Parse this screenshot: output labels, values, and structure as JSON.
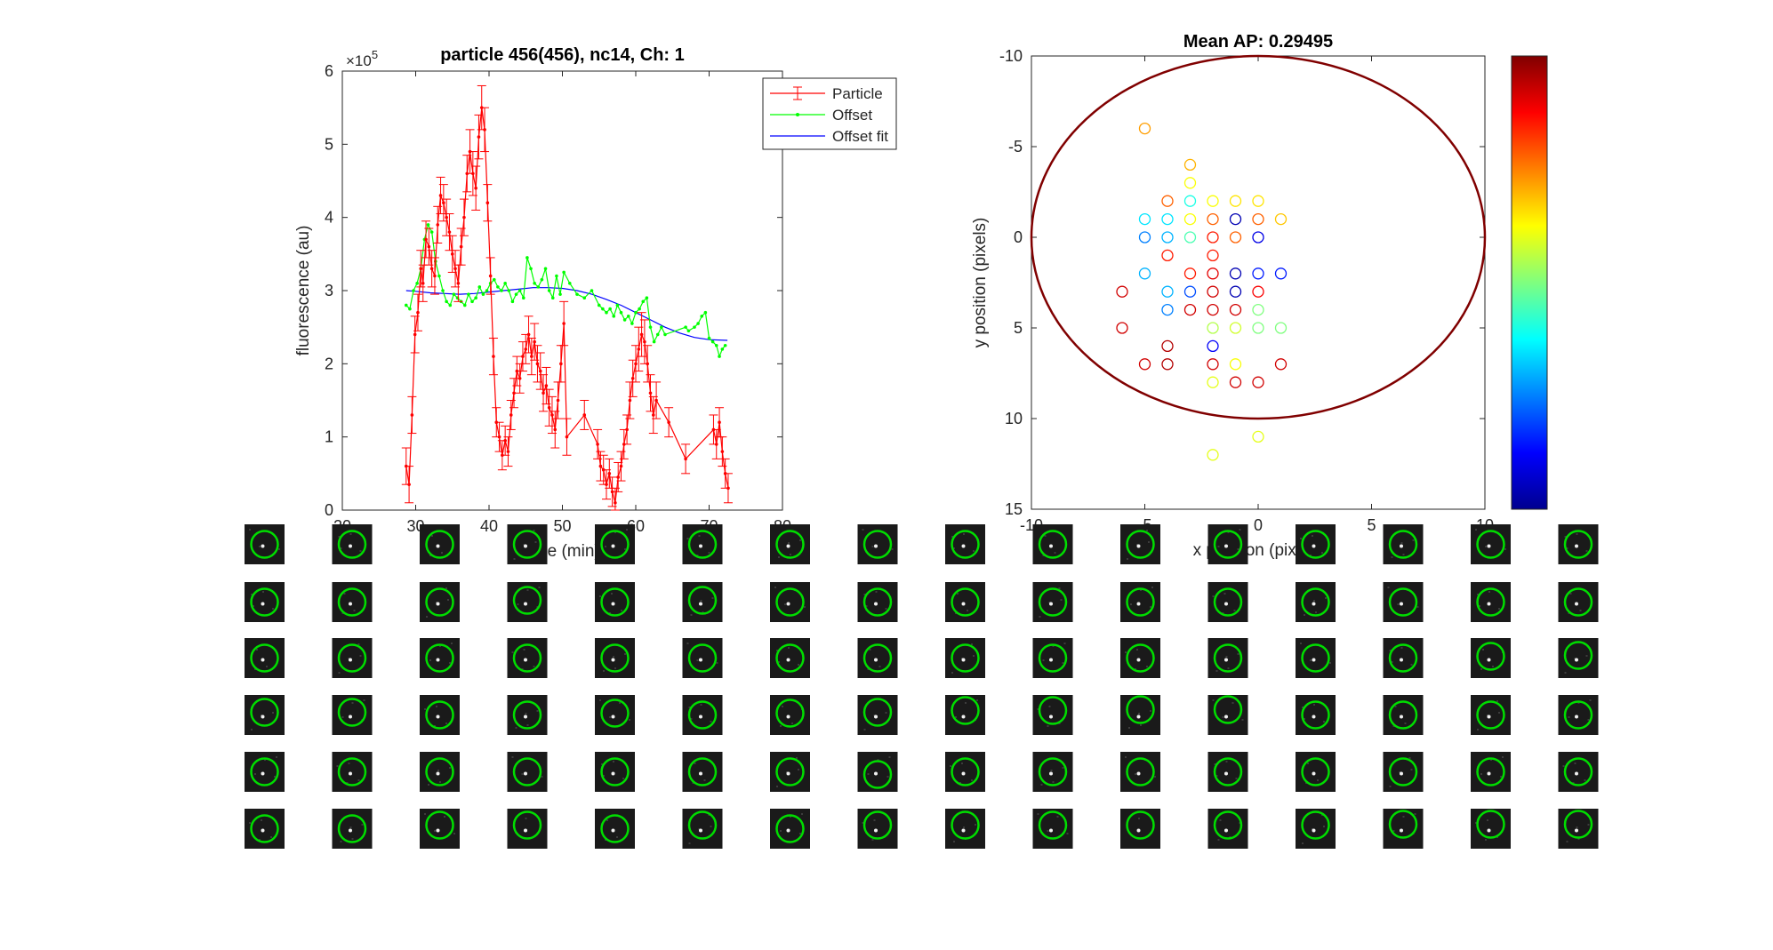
{
  "colors": {
    "particle": "#ff0000",
    "offset": "#00ff00",
    "offset_fit": "#0000ff",
    "ellipse": "#800000",
    "thumb_circle": "#00dd00",
    "thumb_bg": "#1a1a1a"
  },
  "chart_data": [
    {
      "type": "line",
      "title": "particle 456(456), nc14, Ch: 1",
      "xlabel": "time (min)",
      "ylabel": "fluorescence (au)",
      "y_exponent_label": "×10",
      "y_exponent_power": "5",
      "xlim": [
        20,
        80
      ],
      "ylim": [
        0,
        6
      ],
      "xticks": [
        "20",
        "30",
        "40",
        "50",
        "60",
        "70",
        "80"
      ],
      "yticks": [
        "0",
        "1",
        "2",
        "3",
        "4",
        "5",
        "6"
      ],
      "legend_position": "top-right",
      "legend": [
        "Particle",
        "Offset",
        "Offset fit"
      ],
      "series": [
        {
          "name": "Particle",
          "style": "line-with-errorbars",
          "x": [
            28.7,
            29.1,
            29.5,
            29.9,
            30.3,
            30.7,
            31.0,
            31.4,
            31.8,
            32.2,
            32.6,
            33.0,
            33.4,
            33.8,
            34.2,
            34.6,
            35.0,
            35.4,
            35.8,
            36.2,
            36.6,
            37.0,
            37.4,
            37.8,
            38.2,
            38.6,
            39.0,
            39.4,
            39.8,
            40.2,
            40.6,
            41.0,
            41.4,
            41.8,
            42.2,
            42.6,
            43.0,
            43.4,
            43.8,
            44.2,
            44.6,
            45.0,
            45.4,
            45.8,
            46.2,
            46.6,
            47.0,
            47.4,
            47.8,
            48.2,
            48.6,
            49.0,
            49.4,
            49.8,
            50.2,
            50.6,
            53.0,
            54.8,
            55.2,
            55.6,
            56.0,
            56.4,
            56.8,
            57.2,
            57.6,
            58.0,
            58.4,
            58.8,
            59.2,
            59.6,
            60.0,
            60.4,
            60.8,
            61.2,
            61.6,
            62.0,
            62.4,
            62.8,
            64.5,
            66.8,
            70.6,
            71.0,
            71.4,
            71.8,
            72.2,
            72.6
          ],
          "y": [
            0.6,
            0.35,
            1.3,
            2.4,
            2.7,
            3.3,
            3.1,
            3.7,
            3.6,
            3.3,
            3.2,
            3.9,
            4.3,
            4.2,
            4.0,
            3.8,
            3.5,
            3.3,
            3.1,
            3.6,
            4.0,
            4.6,
            4.9,
            4.6,
            4.4,
            5.1,
            5.5,
            5.2,
            4.2,
            3.2,
            2.1,
            1.2,
            1.0,
            0.75,
            0.95,
            0.8,
            1.3,
            1.6,
            1.9,
            1.8,
            2.1,
            2.2,
            2.4,
            2.1,
            2.3,
            2.0,
            1.9,
            1.6,
            1.7,
            1.4,
            1.3,
            1.1,
            1.5,
            2.0,
            2.55,
            1.0,
            1.3,
            0.9,
            0.6,
            0.55,
            0.35,
            0.5,
            0.25,
            0.1,
            0.45,
            0.6,
            0.9,
            1.1,
            1.5,
            1.8,
            2.0,
            2.2,
            2.4,
            2.3,
            2.0,
            1.6,
            1.3,
            1.5,
            1.2,
            0.7,
            1.1,
            0.9,
            1.2,
            0.8,
            0.5,
            0.3
          ],
          "err": [
            0.25,
            0.25,
            0.25,
            0.25,
            0.25,
            0.25,
            0.25,
            0.25,
            0.25,
            0.25,
            0.25,
            0.25,
            0.25,
            0.25,
            0.25,
            0.25,
            0.25,
            0.25,
            0.25,
            0.25,
            0.25,
            0.25,
            0.3,
            0.3,
            0.3,
            0.3,
            0.3,
            0.3,
            0.25,
            0.25,
            0.25,
            0.2,
            0.2,
            0.2,
            0.2,
            0.2,
            0.2,
            0.2,
            0.2,
            0.2,
            0.2,
            0.2,
            0.25,
            0.25,
            0.25,
            0.25,
            0.25,
            0.25,
            0.25,
            0.25,
            0.25,
            0.25,
            0.25,
            0.25,
            0.3,
            0.25,
            0.2,
            0.2,
            0.2,
            0.2,
            0.2,
            0.2,
            0.2,
            0.2,
            0.2,
            0.2,
            0.2,
            0.2,
            0.25,
            0.25,
            0.25,
            0.3,
            0.3,
            0.3,
            0.25,
            0.25,
            0.25,
            0.25,
            0.2,
            0.2,
            0.2,
            0.2,
            0.2,
            0.2,
            0.2,
            0.2
          ]
        },
        {
          "name": "Offset",
          "style": "line-with-dots",
          "x": [
            28.7,
            29.2,
            29.7,
            30.2,
            30.7,
            31.2,
            31.7,
            32.2,
            32.7,
            33.2,
            33.7,
            34.2,
            34.7,
            35.2,
            35.7,
            36.2,
            36.7,
            37.2,
            37.7,
            38.2,
            38.7,
            39.2,
            39.7,
            40.2,
            40.7,
            41.2,
            41.7,
            42.2,
            42.7,
            43.2,
            43.7,
            44.2,
            44.7,
            45.2,
            45.7,
            46.2,
            46.7,
            47.2,
            47.7,
            48.2,
            48.7,
            49.2,
            49.7,
            50.2,
            51.0,
            52.0,
            53.0,
            54.0,
            55.0,
            55.5,
            56.0,
            56.5,
            57.0,
            57.5,
            58.0,
            58.5,
            59.0,
            59.5,
            60.0,
            60.5,
            61.0,
            61.5,
            62.0,
            62.5,
            63.0,
            63.5,
            64.0,
            66.8,
            67.2,
            68.0,
            68.5,
            69.0,
            69.5,
            70.0,
            70.5,
            71.0,
            71.4,
            71.8,
            72.2
          ],
          "y": [
            2.8,
            2.75,
            3.0,
            3.1,
            3.3,
            3.7,
            3.9,
            3.8,
            3.4,
            3.2,
            3.0,
            2.85,
            2.8,
            2.95,
            2.9,
            2.85,
            2.8,
            2.95,
            2.85,
            2.9,
            3.05,
            2.95,
            3.0,
            3.1,
            3.15,
            3.05,
            3.0,
            3.1,
            3.0,
            2.85,
            2.95,
            3.0,
            2.9,
            3.45,
            3.3,
            3.1,
            3.05,
            3.15,
            3.3,
            3.0,
            2.9,
            3.2,
            2.95,
            3.25,
            3.1,
            2.95,
            2.9,
            3.0,
            2.8,
            2.75,
            2.7,
            2.75,
            2.65,
            2.8,
            2.7,
            2.6,
            2.65,
            2.55,
            2.7,
            2.75,
            2.85,
            2.9,
            2.5,
            2.3,
            2.4,
            2.5,
            2.4,
            2.5,
            2.45,
            2.5,
            2.55,
            2.65,
            2.7,
            2.35,
            2.3,
            2.25,
            2.1,
            2.2,
            2.25
          ]
        },
        {
          "name": "Offset fit",
          "style": "line",
          "x": [
            28.7,
            30,
            32,
            34,
            36,
            38,
            40,
            42,
            44,
            46,
            48,
            50,
            52,
            54,
            56,
            58,
            60,
            62,
            64,
            66,
            68,
            70,
            72.5
          ],
          "y": [
            3.0,
            2.99,
            2.97,
            2.96,
            2.95,
            2.96,
            2.98,
            3.0,
            3.02,
            3.04,
            3.04,
            3.03,
            3.0,
            2.95,
            2.88,
            2.8,
            2.7,
            2.6,
            2.5,
            2.42,
            2.36,
            2.33,
            2.32
          ]
        }
      ]
    },
    {
      "type": "scatter",
      "title": "Mean AP: 0.29495",
      "xlabel": "x position (pixels)",
      "ylabel": "y position (pixels)",
      "xlim": [
        -10,
        10
      ],
      "ylim": [
        -10,
        15
      ],
      "y_reversed": true,
      "xticks": [
        "-10",
        "-5",
        "0",
        "5",
        "10"
      ],
      "yticks": [
        "-10",
        "-5",
        "0",
        "5",
        "10",
        "15"
      ],
      "colormap": "jet",
      "colorbar": true,
      "ellipse": {
        "cx": 0,
        "cy": 0,
        "rx": 10,
        "ry": 10
      },
      "points": [
        {
          "x": -5,
          "y": -6,
          "c": 0.72
        },
        {
          "x": -3,
          "y": -4,
          "c": 0.7
        },
        {
          "x": -3,
          "y": -3,
          "c": 0.62
        },
        {
          "x": -4,
          "y": -2,
          "c": 0.78
        },
        {
          "x": -3,
          "y": -2,
          "c": 0.4
        },
        {
          "x": -2,
          "y": -2,
          "c": 0.62
        },
        {
          "x": -1,
          "y": -2,
          "c": 0.65
        },
        {
          "x": 0,
          "y": -2,
          "c": 0.65
        },
        {
          "x": -5,
          "y": -1,
          "c": 0.35
        },
        {
          "x": -4,
          "y": -1,
          "c": 0.35
        },
        {
          "x": -3,
          "y": -1,
          "c": 0.62
        },
        {
          "x": -2,
          "y": -1,
          "c": 0.78
        },
        {
          "x": -1,
          "y": -1,
          "c": 0.05
        },
        {
          "x": 0,
          "y": -1,
          "c": 0.78
        },
        {
          "x": 1,
          "y": -1,
          "c": 0.68
        },
        {
          "x": -5,
          "y": 0,
          "c": 0.25
        },
        {
          "x": -4,
          "y": 0,
          "c": 0.3
        },
        {
          "x": -3,
          "y": 0,
          "c": 0.45
        },
        {
          "x": -2,
          "y": 0,
          "c": 0.85
        },
        {
          "x": -1,
          "y": 0,
          "c": 0.78
        },
        {
          "x": 0,
          "y": 0,
          "c": 0.1
        },
        {
          "x": -4,
          "y": 1,
          "c": 0.85
        },
        {
          "x": -2,
          "y": 1,
          "c": 0.85
        },
        {
          "x": -5,
          "y": 2,
          "c": 0.3
        },
        {
          "x": -3,
          "y": 2,
          "c": 0.85
        },
        {
          "x": -2,
          "y": 2,
          "c": 0.9
        },
        {
          "x": -1,
          "y": 2,
          "c": 0.05
        },
        {
          "x": 0,
          "y": 2,
          "c": 0.15
        },
        {
          "x": 1,
          "y": 2,
          "c": 0.15
        },
        {
          "x": -6,
          "y": 3,
          "c": 0.92
        },
        {
          "x": -4,
          "y": 3,
          "c": 0.3
        },
        {
          "x": -3,
          "y": 3,
          "c": 0.2
        },
        {
          "x": -2,
          "y": 3,
          "c": 0.92
        },
        {
          "x": -1,
          "y": 3,
          "c": 0.05
        },
        {
          "x": 0,
          "y": 3,
          "c": 0.88
        },
        {
          "x": -4,
          "y": 4,
          "c": 0.25
        },
        {
          "x": -3,
          "y": 4,
          "c": 0.92
        },
        {
          "x": -2,
          "y": 4,
          "c": 0.92
        },
        {
          "x": -1,
          "y": 4,
          "c": 0.92
        },
        {
          "x": 0,
          "y": 4,
          "c": 0.5
        },
        {
          "x": -6,
          "y": 5,
          "c": 0.92
        },
        {
          "x": -2,
          "y": 5,
          "c": 0.55
        },
        {
          "x": -1,
          "y": 5,
          "c": 0.58
        },
        {
          "x": 0,
          "y": 5,
          "c": 0.5
        },
        {
          "x": 1,
          "y": 5,
          "c": 0.5
        },
        {
          "x": -4,
          "y": 6,
          "c": 0.95
        },
        {
          "x": -2,
          "y": 6,
          "c": 0.12
        },
        {
          "x": -5,
          "y": 7,
          "c": 0.92
        },
        {
          "x": -4,
          "y": 7,
          "c": 0.95
        },
        {
          "x": -2,
          "y": 7,
          "c": 0.92
        },
        {
          "x": -1,
          "y": 7,
          "c": 0.62
        },
        {
          "x": 1,
          "y": 7,
          "c": 0.92
        },
        {
          "x": -2,
          "y": 8,
          "c": 0.6
        },
        {
          "x": -1,
          "y": 8,
          "c": 0.92
        },
        {
          "x": 0,
          "y": 8,
          "c": 0.92
        },
        {
          "x": 0,
          "y": 11,
          "c": 0.6
        },
        {
          "x": -2,
          "y": 12,
          "c": 0.6
        }
      ]
    }
  ],
  "thumbnails": {
    "rows": 6,
    "cols": 16,
    "circle_offsets": [
      [
        [
          0,
          0
        ],
        [
          0,
          0
        ],
        [
          0,
          0
        ],
        [
          0,
          0
        ],
        [
          0,
          0
        ],
        [
          0,
          0
        ],
        [
          0,
          0
        ],
        [
          0,
          0
        ],
        [
          0,
          0
        ],
        [
          0,
          0
        ],
        [
          0,
          0
        ],
        [
          0,
          0
        ],
        [
          0,
          0
        ],
        [
          0,
          0
        ],
        [
          0,
          0
        ],
        [
          0,
          0
        ]
      ],
      [
        [
          0,
          0
        ],
        [
          0,
          0
        ],
        [
          0,
          0
        ],
        [
          0,
          -2
        ],
        [
          0,
          0
        ],
        [
          0,
          -2
        ],
        [
          0,
          0
        ],
        [
          0,
          0
        ],
        [
          0,
          0
        ],
        [
          0,
          0
        ],
        [
          0,
          0
        ],
        [
          0,
          0
        ],
        [
          0,
          0
        ],
        [
          0,
          0
        ],
        [
          0,
          0
        ],
        [
          0,
          0
        ]
      ],
      [
        [
          0,
          0
        ],
        [
          0,
          0
        ],
        [
          0,
          0
        ],
        [
          0,
          0
        ],
        [
          0,
          0
        ],
        [
          0,
          0
        ],
        [
          0,
          0
        ],
        [
          0,
          0
        ],
        [
          0,
          0
        ],
        [
          0,
          0
        ],
        [
          0,
          0
        ],
        [
          0,
          0
        ],
        [
          0,
          0
        ],
        [
          0,
          0
        ],
        [
          0,
          -2
        ],
        [
          0,
          -3
        ]
      ],
      [
        [
          0,
          -3
        ],
        [
          0,
          -3
        ],
        [
          0,
          0
        ],
        [
          0,
          0
        ],
        [
          0,
          -2
        ],
        [
          0,
          0
        ],
        [
          0,
          -2
        ],
        [
          0,
          -3
        ],
        [
          0,
          -5
        ],
        [
          0,
          -5
        ],
        [
          0,
          -6
        ],
        [
          0,
          -6
        ],
        [
          0,
          0
        ],
        [
          0,
          0
        ],
        [
          0,
          0
        ],
        [
          0,
          0
        ]
      ],
      [
        [
          0,
          0
        ],
        [
          0,
          0
        ],
        [
          0,
          0
        ],
        [
          0,
          0
        ],
        [
          0,
          0
        ],
        [
          0,
          0
        ],
        [
          0,
          0
        ],
        [
          0,
          3
        ],
        [
          0,
          0
        ],
        [
          0,
          0
        ],
        [
          0,
          0
        ],
        [
          0,
          0
        ],
        [
          0,
          0
        ],
        [
          0,
          0
        ],
        [
          0,
          0
        ],
        [
          0,
          0
        ]
      ],
      [
        [
          0,
          0
        ],
        [
          0,
          0
        ],
        [
          0,
          -4
        ],
        [
          0,
          -4
        ],
        [
          0,
          0
        ],
        [
          0,
          -4
        ],
        [
          0,
          0
        ],
        [
          0,
          -4
        ],
        [
          0,
          -4
        ],
        [
          0,
          -4
        ],
        [
          0,
          -4
        ],
        [
          0,
          -4
        ],
        [
          0,
          -4
        ],
        [
          0,
          -5
        ],
        [
          0,
          -5
        ],
        [
          0,
          -5
        ]
      ]
    ]
  }
}
